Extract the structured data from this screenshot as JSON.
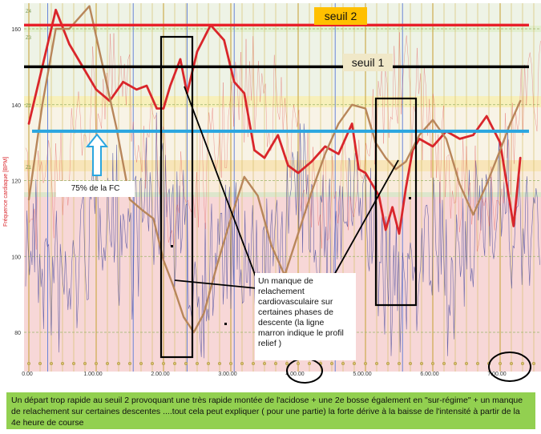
{
  "chart_data": {
    "type": "line",
    "ylabel": "Fréquence cardiaque [BPM]",
    "y_ticks": [
      "160",
      "140",
      "120",
      "100",
      "80"
    ],
    "x_ticks": [
      "0.00",
      "1.00.00",
      "2.00.00",
      "3.00.00",
      "4.00.00",
      "5.00.00",
      "6.00.00",
      "7.00.00"
    ],
    "zone_labels": [
      "Z4",
      "Z3",
      "Z2",
      "Z1"
    ],
    "threshold_lines": [
      {
        "label": "seuil 2",
        "bpm": 161,
        "color": "#e8202a"
      },
      {
        "label": "seuil 1",
        "bpm": 150,
        "color": "#000000"
      },
      {
        "label": "75% de la FC",
        "bpm": 133,
        "color": "#2aa6e0"
      }
    ],
    "series": [
      {
        "color": "#d9262b",
        "x": [
          0.0,
          0.2,
          0.4,
          0.6,
          0.8,
          1.0,
          1.2,
          1.4,
          1.6,
          1.75,
          1.9,
          2.0,
          2.1,
          2.25,
          2.35,
          2.5,
          2.7,
          2.9,
          3.05,
          3.2,
          3.35,
          3.5,
          3.7,
          3.85,
          4.0,
          4.2,
          4.4,
          4.6,
          4.8,
          4.9,
          5.0,
          5.1,
          5.2,
          5.3,
          5.4,
          5.5,
          5.6,
          5.7,
          5.8,
          6.0,
          6.2,
          6.4,
          6.6,
          6.8,
          7.0,
          7.2,
          7.3
        ],
        "y": [
          135,
          150,
          165,
          156,
          150,
          144,
          141,
          146,
          144,
          145,
          139,
          139,
          145,
          152,
          143,
          154,
          161,
          157,
          146,
          143,
          128,
          126,
          132,
          124,
          122,
          125,
          129,
          127,
          135,
          123,
          122,
          119,
          116,
          107,
          113,
          106,
          118,
          128,
          131,
          129,
          133,
          131,
          132,
          137,
          130,
          108,
          126
        ]
      },
      {
        "color": "#b8865a",
        "x": [
          0.0,
          0.2,
          0.4,
          0.6,
          0.75,
          0.9,
          1.1,
          1.3,
          1.5,
          1.7,
          1.85,
          2.0,
          2.15,
          2.3,
          2.45,
          2.6,
          2.8,
          3.0,
          3.2,
          3.4,
          3.6,
          3.8,
          4.0,
          4.2,
          4.4,
          4.6,
          4.8,
          5.0,
          5.15,
          5.3,
          5.45,
          5.6,
          5.8,
          6.0,
          6.2,
          6.4,
          6.6,
          6.8,
          7.0,
          7.15,
          7.3
        ],
        "y": [
          115,
          140,
          160,
          160,
          163,
          166,
          150,
          134,
          115,
          112,
          110,
          99,
          92,
          84,
          80,
          85,
          98,
          110,
          121,
          116,
          103,
          95,
          106,
          117,
          127,
          135,
          140,
          139,
          130,
          126,
          123,
          125,
          132,
          136,
          131,
          119,
          111,
          119,
          128,
          135,
          141
        ]
      }
    ],
    "annotations": [
      "seuil 2",
      "seuil 1",
      "75% de la FC",
      "Un manque de relachement cardiovasculaire sur certaines  phases de descente  (la ligne marron indique le profil relief )"
    ],
    "caption": "Un départ trop rapide au seuil 2 provoquant une très rapide montée de l'acidose  + une 2e bosse également en \"sur-régime\" + un manque de relachement sur certaines descentes  ....tout cela peut expliquer ( pour une partie)   la forte dérive à la baisse de l'intensité à partir de la 4e heure de course",
    "legend": "none",
    "grid": true
  }
}
